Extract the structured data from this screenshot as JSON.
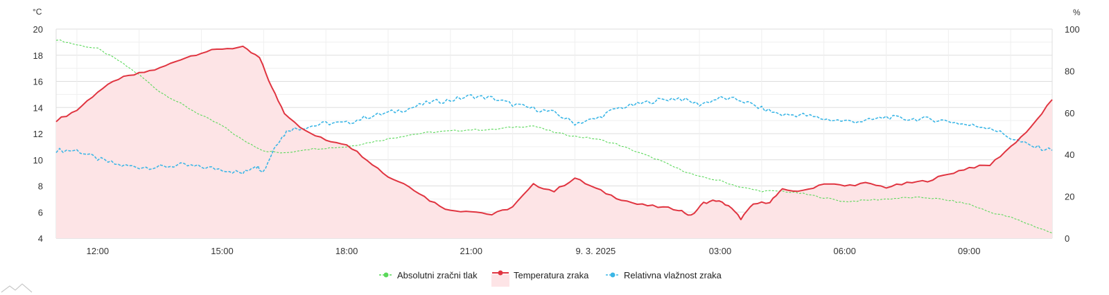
{
  "chart_data": {
    "type": "line",
    "left_unit": "°C",
    "right_unit": "%",
    "left_axis": {
      "min": 4,
      "max": 20,
      "ticks": [
        4,
        6,
        8,
        10,
        12,
        14,
        16,
        18,
        20
      ]
    },
    "right_axis": {
      "min": 0,
      "max": 100,
      "ticks": [
        0,
        20,
        40,
        60,
        80,
        100
      ]
    },
    "x_range": [
      11.0,
      35.0
    ],
    "x_ticks": [
      {
        "x": 12,
        "label": "12:00"
      },
      {
        "x": 15,
        "label": "15:00"
      },
      {
        "x": 18,
        "label": "18:00"
      },
      {
        "x": 21,
        "label": "21:00"
      },
      {
        "x": 24,
        "label": "9. 3. 2025"
      },
      {
        "x": 27,
        "label": "03:00"
      },
      {
        "x": 30,
        "label": "06:00"
      },
      {
        "x": 33,
        "label": "09:00"
      }
    ],
    "grid": true,
    "legend_position": "bottom",
    "series": [
      {
        "name": "Absolutni zračni tlak",
        "color": "#5ad85a",
        "style": "dashed",
        "x": [
          11.0,
          11.5,
          12.0,
          12.5,
          13.0,
          13.5,
          14.0,
          14.5,
          15.0,
          15.5,
          16.0,
          16.5,
          17.0,
          17.5,
          18.0,
          18.5,
          19.0,
          19.5,
          20.0,
          20.5,
          21.0,
          21.5,
          22.0,
          22.5,
          23.0,
          23.5,
          24.0,
          24.5,
          25.0,
          25.5,
          26.0,
          26.5,
          27.0,
          27.5,
          28.0,
          28.5,
          29.0,
          29.5,
          30.0,
          30.5,
          31.0,
          31.5,
          32.0,
          32.5,
          33.0,
          33.5,
          34.0,
          34.5,
          35.0
        ],
        "y": [
          19.2,
          18.8,
          18.5,
          17.6,
          16.5,
          15.2,
          14.3,
          13.4,
          12.6,
          11.5,
          10.7,
          10.5,
          10.8,
          10.9,
          11.0,
          11.3,
          11.6,
          11.9,
          12.1,
          12.2,
          12.3,
          12.3,
          12.5,
          12.6,
          12.1,
          11.8,
          11.6,
          11.2,
          10.6,
          10.0,
          9.3,
          8.7,
          8.4,
          7.9,
          7.6,
          7.6,
          7.4,
          7.1,
          6.8,
          6.9,
          7.0,
          7.1,
          7.1,
          6.9,
          6.6,
          6.0,
          5.6,
          5.0,
          4.4
        ]
      },
      {
        "name": "Temperatura zraka",
        "color": "#e03440",
        "style": "area",
        "fill": "#fde4e6",
        "x": [
          11.0,
          11.5,
          12.0,
          12.5,
          13.0,
          13.5,
          14.0,
          14.5,
          15.0,
          15.5,
          15.9,
          16.2,
          16.5,
          17.0,
          17.5,
          18.0,
          18.5,
          19.0,
          19.5,
          20.0,
          20.5,
          21.0,
          21.5,
          22.0,
          22.5,
          23.0,
          23.5,
          24.0,
          24.5,
          25.0,
          25.5,
          26.0,
          26.3,
          26.6,
          26.9,
          27.2,
          27.5,
          27.8,
          28.2,
          28.5,
          29.0,
          29.5,
          30.0,
          30.5,
          31.0,
          31.5,
          32.0,
          32.5,
          33.0,
          33.5,
          34.0,
          34.5,
          35.0
        ],
        "y": [
          13.0,
          13.8,
          15.2,
          16.2,
          16.6,
          17.0,
          17.7,
          18.2,
          18.5,
          18.6,
          17.8,
          15.5,
          13.6,
          12.2,
          11.5,
          11.2,
          10.0,
          8.7,
          8.0,
          6.9,
          6.1,
          6.1,
          5.8,
          6.4,
          8.1,
          7.6,
          8.6,
          7.8,
          7.1,
          6.6,
          6.4,
          6.2,
          5.7,
          6.7,
          6.9,
          6.5,
          5.5,
          6.6,
          6.8,
          7.7,
          7.6,
          8.2,
          8.0,
          8.2,
          7.9,
          8.2,
          8.4,
          8.9,
          9.4,
          9.6,
          11.0,
          12.5,
          14.6
        ]
      },
      {
        "name": "Relativna vlažnost zraka",
        "color": "#3bb6e6",
        "style": "dashed",
        "x": [
          11.0,
          11.5,
          12.0,
          12.5,
          13.0,
          13.5,
          14.0,
          14.5,
          15.0,
          15.5,
          15.8,
          16.0,
          16.3,
          16.6,
          17.0,
          17.5,
          18.0,
          18.5,
          19.0,
          19.5,
          20.0,
          20.5,
          21.0,
          21.5,
          22.0,
          22.5,
          23.0,
          23.5,
          24.0,
          24.5,
          25.0,
          25.5,
          26.0,
          26.5,
          27.0,
          27.5,
          28.0,
          28.5,
          29.0,
          29.5,
          30.0,
          30.5,
          31.0,
          31.5,
          32.0,
          32.5,
          33.0,
          33.5,
          34.0,
          34.5,
          35.0
        ],
        "y": [
          42,
          42,
          38,
          35,
          34,
          34,
          35,
          34,
          33,
          31,
          35,
          32,
          45,
          52,
          53,
          55,
          55,
          58,
          60,
          62,
          65,
          66,
          68,
          67,
          64,
          62,
          60,
          55,
          57,
          62,
          64,
          66,
          67,
          64,
          67,
          66,
          62,
          59,
          59,
          57,
          56,
          56,
          58,
          57,
          57,
          56,
          54,
          53,
          48,
          44,
          42
        ]
      }
    ]
  }
}
